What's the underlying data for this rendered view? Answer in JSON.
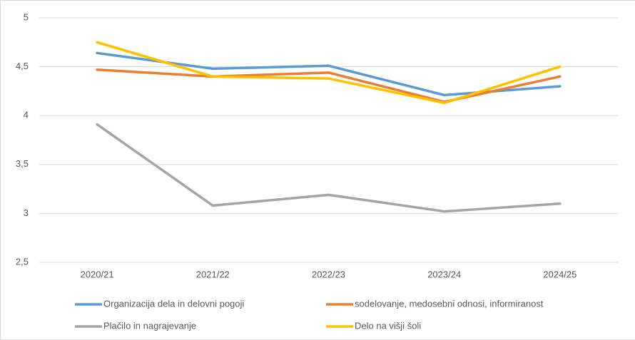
{
  "chart_data": {
    "type": "line",
    "categories": [
      "2020/21",
      "2021/22",
      "2022/23",
      "2023/24",
      "2024/25"
    ],
    "series": [
      {
        "name": "Organizacija dela in delovni pogoji",
        "color": "#5b9bd5",
        "values": [
          4.64,
          4.48,
          4.51,
          4.21,
          4.3
        ]
      },
      {
        "name": "sodelovanje, medosebni odnosi, informiranost",
        "color": "#ed7d31",
        "values": [
          4.47,
          4.4,
          4.44,
          4.14,
          4.4
        ]
      },
      {
        "name": "Plačilo in nagrajevanje",
        "color": "#a5a5a5",
        "values": [
          3.91,
          3.08,
          3.19,
          3.02,
          3.1
        ]
      },
      {
        "name": "Delo na višji šoli",
        "color": "#ffc000",
        "values": [
          4.75,
          4.4,
          4.38,
          4.13,
          4.5
        ]
      }
    ],
    "ylim": [
      2.5,
      5
    ],
    "yticks": [
      {
        "value": 2.5,
        "label": "2,5"
      },
      3,
      {
        "value": 3.5,
        "label": "3,5"
      },
      4,
      {
        "value": 4.5,
        "label": "4,5"
      },
      5
    ],
    "grid": true,
    "legend": "bottom"
  }
}
